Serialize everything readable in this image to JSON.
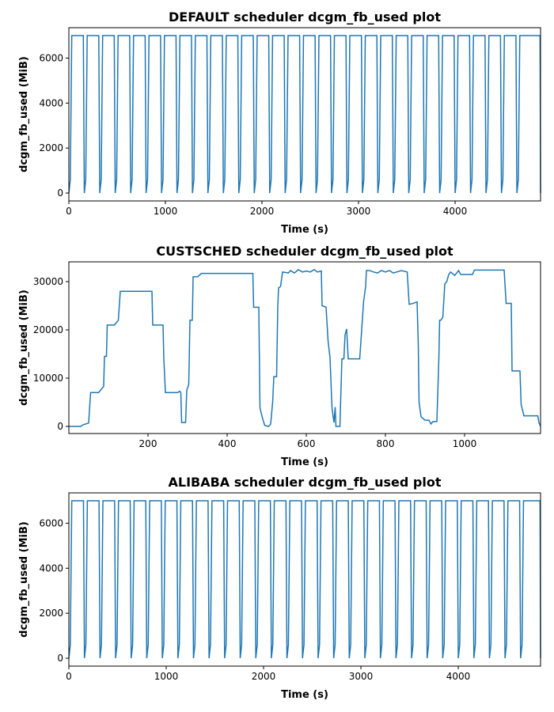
{
  "chart_data": [
    {
      "type": "line",
      "title": "DEFAULT scheduler dcgm_fb_used plot",
      "xlabel": "Time (s)",
      "ylabel": "dcgm_fb_used (MiB)",
      "xlim": [
        0,
        4885
      ],
      "ylim": [
        -350,
        7350
      ],
      "xticks": [
        0,
        1000,
        2000,
        3000,
        4000
      ],
      "yticks": [
        0,
        2000,
        4000,
        6000
      ],
      "color": "#1f77b4",
      "x": [
        0,
        15,
        30,
        150,
        160,
        175,
        190,
        310,
        320,
        335,
        350,
        470,
        480,
        495,
        510,
        630,
        640,
        655,
        670,
        790,
        800,
        815,
        830,
        950,
        960,
        975,
        990,
        1110,
        1120,
        1135,
        1150,
        1270,
        1280,
        1295,
        1310,
        1430,
        1440,
        1455,
        1470,
        1590,
        1600,
        1615,
        1630,
        1750,
        1760,
        1775,
        1790,
        1910,
        1920,
        1935,
        1950,
        2070,
        2080,
        2095,
        2110,
        2230,
        2240,
        2255,
        2270,
        2390,
        2400,
        2415,
        2430,
        2550,
        2560,
        2575,
        2590,
        2710,
        2720,
        2735,
        2750,
        2870,
        2880,
        2895,
        2910,
        3030,
        3040,
        3055,
        3070,
        3190,
        3200,
        3215,
        3230,
        3350,
        3360,
        3375,
        3390,
        3510,
        3520,
        3535,
        3550,
        3670,
        3680,
        3695,
        3710,
        3830,
        3840,
        3855,
        3870,
        3990,
        4000,
        4015,
        4030,
        4150,
        4160,
        4175,
        4190,
        4310,
        4320,
        4335,
        4350,
        4470,
        4480,
        4495,
        4510,
        4630,
        4640,
        4655,
        4670,
        4790,
        4880,
        4885
      ],
      "values": [
        0,
        600,
        7000,
        7000,
        0,
        600,
        7000,
        7000,
        0,
        600,
        7000,
        7000,
        0,
        600,
        7000,
        7000,
        0,
        600,
        7000,
        7000,
        0,
        600,
        7000,
        7000,
        0,
        600,
        7000,
        7000,
        0,
        600,
        7000,
        7000,
        0,
        600,
        7000,
        7000,
        0,
        600,
        7000,
        7000,
        0,
        600,
        7000,
        7000,
        0,
        600,
        7000,
        7000,
        0,
        600,
        7000,
        7000,
        0,
        600,
        7000,
        7000,
        0,
        600,
        7000,
        7000,
        0,
        600,
        7000,
        7000,
        0,
        600,
        7000,
        7000,
        0,
        600,
        7000,
        7000,
        0,
        600,
        7000,
        7000,
        0,
        600,
        7000,
        7000,
        0,
        600,
        7000,
        7000,
        0,
        600,
        7000,
        7000,
        0,
        600,
        7000,
        7000,
        0,
        600,
        7000,
        7000,
        0,
        600,
        7000,
        7000,
        0,
        600,
        7000,
        7000,
        0,
        600,
        7000,
        7000,
        0,
        600,
        7000,
        7000,
        0,
        600,
        7000,
        7000,
        0,
        600,
        7000,
        7000,
        7000,
        0
      ]
    },
    {
      "type": "line",
      "title": "CUSTSCHED scheduler dcgm_fb_used plot",
      "xlabel": "Time (s)",
      "ylabel": "dcgm_fb_used (MiB)",
      "xlim": [
        0,
        1192
      ],
      "ylim": [
        -1475,
        34100
      ],
      "xticks": [
        200,
        400,
        600,
        800,
        1000
      ],
      "yticks": [
        0,
        10000,
        20000,
        30000
      ],
      "color": "#1f77b4",
      "x": [
        0,
        30,
        35,
        50,
        55,
        75,
        80,
        88,
        90,
        95,
        97,
        115,
        120,
        125,
        130,
        210,
        212,
        238,
        240,
        244,
        275,
        280,
        283,
        285,
        295,
        298,
        303,
        306,
        312,
        314,
        325,
        335,
        465,
        467,
        480,
        483,
        490,
        495,
        505,
        510,
        515,
        518,
        525,
        528,
        530,
        535,
        540,
        555,
        560,
        570,
        580,
        590,
        600,
        610,
        620,
        628,
        638,
        640,
        650,
        655,
        660,
        665,
        670,
        673,
        675,
        685,
        690,
        695,
        698,
        702,
        706,
        735,
        740,
        745,
        750,
        752,
        760,
        770,
        780,
        790,
        800,
        810,
        820,
        840,
        855,
        860,
        870,
        880,
        883,
        885,
        890,
        900,
        910,
        915,
        920,
        930,
        935,
        937,
        940,
        945,
        950,
        955,
        960,
        965,
        975,
        985,
        990,
        1020,
        1025,
        1100,
        1105,
        1118,
        1120,
        1140,
        1143,
        1150,
        1185,
        1188,
        1192
      ],
      "values": [
        0,
        0,
        300,
        700,
        7000,
        7000,
        7500,
        8300,
        14500,
        14500,
        21000,
        21000,
        21500,
        22000,
        28000,
        28000,
        21000,
        21000,
        14000,
        7000,
        7000,
        7300,
        7000,
        800,
        800,
        7500,
        8700,
        22000,
        22000,
        31000,
        31000,
        31700,
        31700,
        24700,
        24700,
        3800,
        1500,
        200,
        0,
        500,
        5000,
        10300,
        10300,
        25000,
        28700,
        29000,
        32000,
        31800,
        32300,
        31800,
        32500,
        32000,
        32200,
        32000,
        32500,
        32000,
        32200,
        25000,
        24700,
        17800,
        14200,
        3800,
        800,
        4000,
        0,
        0,
        14000,
        14000,
        19000,
        20200,
        14000,
        14000,
        20000,
        26000,
        29000,
        32300,
        32300,
        32000,
        31800,
        32300,
        32000,
        32300,
        31800,
        32300,
        32000,
        25300,
        25500,
        25800,
        17000,
        5000,
        2000,
        1300,
        1300,
        500,
        1000,
        1000,
        14000,
        22000,
        22000,
        22600,
        29500,
        30000,
        31500,
        32000,
        31300,
        32300,
        31500,
        31500,
        32400,
        32400,
        25500,
        25500,
        11500,
        11500,
        4500,
        2200,
        2200,
        800,
        0
      ]
    },
    {
      "type": "line",
      "title": "ALIBABA scheduler dcgm_fb_used plot",
      "xlabel": "Time (s)",
      "ylabel": "dcgm_fb_used (MiB)",
      "xlim": [
        0,
        4845
      ],
      "ylim": [
        -350,
        7350
      ],
      "xticks": [
        0,
        1000,
        2000,
        3000,
        4000
      ],
      "yticks": [
        0,
        2000,
        4000,
        6000
      ],
      "color": "#1f77b4",
      "x": [
        0,
        15,
        30,
        150,
        160,
        175,
        190,
        310,
        320,
        335,
        350,
        470,
        480,
        495,
        510,
        630,
        640,
        655,
        670,
        790,
        800,
        815,
        830,
        950,
        960,
        975,
        990,
        1110,
        1120,
        1135,
        1150,
        1270,
        1280,
        1295,
        1310,
        1430,
        1440,
        1455,
        1470,
        1590,
        1600,
        1615,
        1630,
        1750,
        1760,
        1775,
        1790,
        1910,
        1920,
        1935,
        1950,
        2070,
        2080,
        2095,
        2110,
        2230,
        2240,
        2255,
        2270,
        2390,
        2400,
        2415,
        2430,
        2550,
        2560,
        2575,
        2590,
        2710,
        2720,
        2735,
        2750,
        2870,
        2880,
        2895,
        2910,
        3030,
        3040,
        3055,
        3070,
        3190,
        3200,
        3215,
        3230,
        3350,
        3360,
        3375,
        3390,
        3510,
        3520,
        3535,
        3550,
        3670,
        3680,
        3695,
        3710,
        3830,
        3840,
        3855,
        3870,
        3990,
        4000,
        4015,
        4030,
        4150,
        4160,
        4175,
        4190,
        4310,
        4320,
        4335,
        4350,
        4470,
        4480,
        4495,
        4510,
        4630,
        4640,
        4655,
        4670,
        4790,
        4840,
        4845
      ],
      "values": [
        0,
        600,
        7000,
        7000,
        0,
        600,
        7000,
        7000,
        0,
        600,
        7000,
        7000,
        0,
        600,
        7000,
        7000,
        0,
        600,
        7000,
        7000,
        0,
        600,
        7000,
        7000,
        0,
        600,
        7000,
        7000,
        0,
        600,
        7000,
        7000,
        0,
        600,
        7000,
        7000,
        0,
        600,
        7000,
        7000,
        0,
        600,
        7000,
        7000,
        0,
        600,
        7000,
        7000,
        0,
        600,
        7000,
        7000,
        0,
        600,
        7000,
        7000,
        0,
        600,
        7000,
        7000,
        0,
        600,
        7000,
        7000,
        0,
        600,
        7000,
        7000,
        0,
        600,
        7000,
        7000,
        0,
        600,
        7000,
        7000,
        0,
        600,
        7000,
        7000,
        0,
        600,
        7000,
        7000,
        0,
        600,
        7000,
        7000,
        0,
        600,
        7000,
        7000,
        0,
        600,
        7000,
        7000,
        0,
        600,
        7000,
        7000,
        0,
        600,
        7000,
        7000,
        0,
        600,
        7000,
        7000,
        0,
        600,
        7000,
        7000,
        0,
        600,
        7000,
        7000,
        0,
        600,
        7000,
        7000,
        7000,
        0
      ]
    }
  ]
}
